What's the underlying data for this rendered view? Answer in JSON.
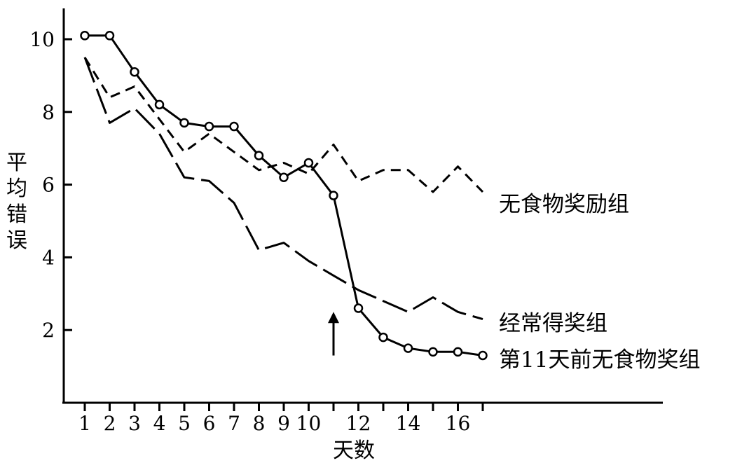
{
  "chart_data": {
    "type": "line",
    "title": "",
    "xlabel": "天数",
    "ylabel": "平均错误",
    "xlim": [
      0,
      17.6
    ],
    "ylim": [
      0,
      10.8
    ],
    "x_ticks": [
      {
        "value": 1,
        "label": "1"
      },
      {
        "value": 2,
        "label": "2"
      },
      {
        "value": 3,
        "label": "3"
      },
      {
        "value": 4,
        "label": "4"
      },
      {
        "value": 5,
        "label": "5"
      },
      {
        "value": 6,
        "label": "6"
      },
      {
        "value": 7,
        "label": "7"
      },
      {
        "value": 8,
        "label": "8"
      },
      {
        "value": 9,
        "label": "9"
      },
      {
        "value": 10,
        "label": "10"
      },
      {
        "value": 12,
        "label": "12"
      },
      {
        "value": 14,
        "label": "14"
      },
      {
        "value": 16,
        "label": "16"
      }
    ],
    "y_ticks": [
      {
        "value": 2,
        "label": "2"
      },
      {
        "value": 4,
        "label": "4"
      },
      {
        "value": 6,
        "label": "6"
      },
      {
        "value": 8,
        "label": "8"
      },
      {
        "value": 10,
        "label": "10"
      }
    ],
    "grid": false,
    "legend": "inline labels at right end of each line",
    "annotation": {
      "type": "arrow",
      "x": 11,
      "y_from": 1.3,
      "y_to": 2.5
    },
    "series": [
      {
        "name": "无食物奖励组",
        "style": "short-dash",
        "x": [
          1,
          2,
          3,
          4,
          5,
          6,
          7,
          8,
          9,
          10,
          11,
          12,
          13,
          14,
          15,
          16,
          17
        ],
        "y": [
          9.5,
          8.4,
          8.7,
          7.8,
          6.9,
          7.4,
          6.9,
          6.4,
          6.6,
          6.3,
          7.1,
          6.1,
          6.4,
          6.4,
          5.8,
          6.5,
          5.8
        ]
      },
      {
        "name": "经常得奖组",
        "style": "long-dash",
        "x": [
          1,
          2,
          3,
          4,
          5,
          6,
          7,
          8,
          9,
          10,
          11,
          12,
          13,
          14,
          15,
          16,
          17
        ],
        "y": [
          9.5,
          7.7,
          8.1,
          7.4,
          6.2,
          6.1,
          5.5,
          4.2,
          4.4,
          3.9,
          3.5,
          3.1,
          2.8,
          2.5,
          2.9,
          2.5,
          2.3
        ]
      },
      {
        "name": "第11天前无食物奖组",
        "style": "solid-circle",
        "x": [
          1,
          2,
          3,
          4,
          5,
          6,
          7,
          8,
          9,
          10,
          11,
          12,
          13,
          14,
          15,
          16,
          17
        ],
        "y": [
          10.1,
          10.1,
          9.1,
          8.2,
          7.7,
          7.6,
          7.6,
          6.8,
          6.2,
          6.6,
          5.7,
          2.6,
          1.8,
          1.5,
          1.4,
          1.4,
          1.3
        ]
      }
    ]
  }
}
